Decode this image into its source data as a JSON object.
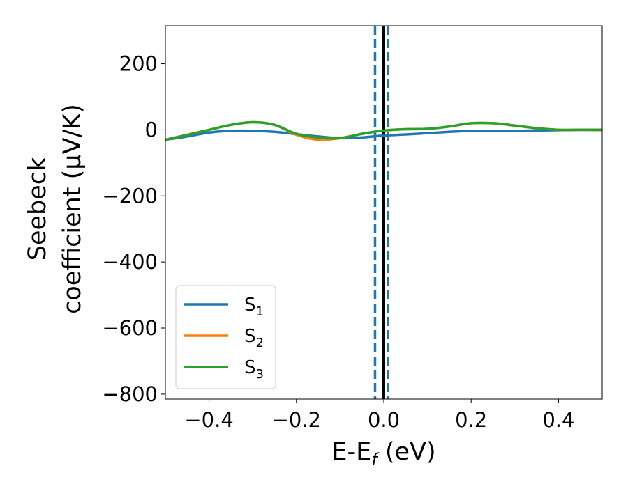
{
  "chart_data": {
    "type": "line",
    "title": "",
    "xlabel": "E-E",
    "xlabel_subscript": "f",
    "xlabel_unit": " (eV)",
    "ylabel_line1": "Seebeck",
    "ylabel_line2": "coefficient  (μV/K)",
    "xlim": [
      -0.5,
      0.5
    ],
    "ylim": [
      -815,
      315
    ],
    "xticks": [
      -0.4,
      -0.2,
      0.0,
      0.2,
      0.4
    ],
    "xtick_labels": [
      "−0.4",
      "−0.2",
      "0.0",
      "0.2",
      "0.4"
    ],
    "yticks": [
      200,
      0,
      -200,
      -400,
      -600,
      -800
    ],
    "ytick_labels": [
      "200",
      "0",
      "−200",
      "−400",
      "−600",
      "−800"
    ],
    "grid": false,
    "legend_position": "lower-left",
    "series": [
      {
        "name": "S",
        "subscript": "1",
        "color": "#1f77b4",
        "x": [
          -0.5,
          -0.45,
          -0.4,
          -0.35,
          -0.3,
          -0.25,
          -0.2,
          -0.15,
          -0.1,
          -0.05,
          0.0,
          0.05,
          0.1,
          0.15,
          0.2,
          0.25,
          0.3,
          0.35,
          0.4,
          0.45,
          0.5
        ],
        "y": [
          -30,
          -20,
          -8,
          -3,
          -3,
          -6,
          -13,
          -20,
          -25,
          -23,
          -17,
          -14,
          -10,
          -6,
          -3,
          -3,
          -3,
          -2,
          -1,
          0,
          0
        ]
      },
      {
        "name": "S",
        "subscript": "2",
        "color": "#ff7f0e",
        "x": [
          -0.5,
          -0.45,
          -0.4,
          -0.35,
          -0.3,
          -0.25,
          -0.2,
          -0.15,
          -0.1,
          -0.05,
          0.0,
          0.05,
          0.1,
          0.15,
          0.2,
          0.25,
          0.3,
          0.35,
          0.4,
          0.45,
          0.5
        ],
        "y": [
          -30,
          -15,
          0,
          15,
          23,
          15,
          -15,
          -30,
          -25,
          -12,
          -2,
          2,
          3,
          10,
          20,
          20,
          13,
          5,
          0,
          0,
          -1
        ]
      },
      {
        "name": "S",
        "subscript": "3",
        "color": "#2ca02c",
        "x": [
          -0.5,
          -0.45,
          -0.4,
          -0.35,
          -0.3,
          -0.25,
          -0.2,
          -0.15,
          -0.1,
          -0.05,
          0.0,
          0.05,
          0.1,
          0.15,
          0.2,
          0.25,
          0.3,
          0.35,
          0.4,
          0.45,
          0.5
        ],
        "y": [
          -30,
          -15,
          0,
          15,
          23,
          15,
          -12,
          -23,
          -25,
          -12,
          -2,
          2,
          3,
          10,
          20,
          20,
          13,
          5,
          0,
          0,
          0
        ]
      }
    ],
    "vlines": [
      {
        "x": -0.02,
        "style": "dashed",
        "color": "#1f77b4"
      },
      {
        "x": 0.0,
        "style": "solid",
        "color": "#000000"
      },
      {
        "x": 0.01,
        "style": "dashed",
        "color": "#1f77b4"
      }
    ]
  }
}
